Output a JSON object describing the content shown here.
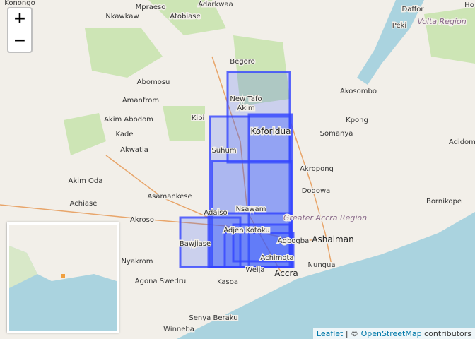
{
  "zoom": {
    "in": "+",
    "out": "−"
  },
  "places": [
    "Konongo",
    "Mpraeso",
    "Adarkwaa",
    "Nkawkaw",
    "Atobiase",
    "Begoro",
    "Abomosu",
    "Amanfrom",
    "Kibi",
    "Akim Abodom",
    "Kade",
    "Akwatia",
    "New Tafo",
    "Akim",
    "Koforidua",
    "Suhum",
    "Akim Oda",
    "Asamankese",
    "Achiase",
    "Akroso",
    "Adaiso",
    "Nsawam",
    "Adjen Kotoku",
    "Bawjiase",
    "Nyakrom",
    "Agona Swedru",
    "Kasoa",
    "Weija",
    "Accra",
    "Achimota",
    "Agbogba",
    "Ashaiman",
    "Nungua",
    "Senya Beraku",
    "Winneba",
    "Akosombo",
    "Kpong",
    "Somanya",
    "Akropong",
    "Dodowa",
    "Daffor",
    "Peki",
    "Bornikope",
    "Adidome",
    "Ho"
  ],
  "regions": [
    "Volta Region",
    "Greater Accra Region"
  ],
  "attribution": {
    "leaflet": "Leaflet",
    "separator": "| ©",
    "osm": "OpenStreetMap",
    "suffix": "contributors"
  }
}
